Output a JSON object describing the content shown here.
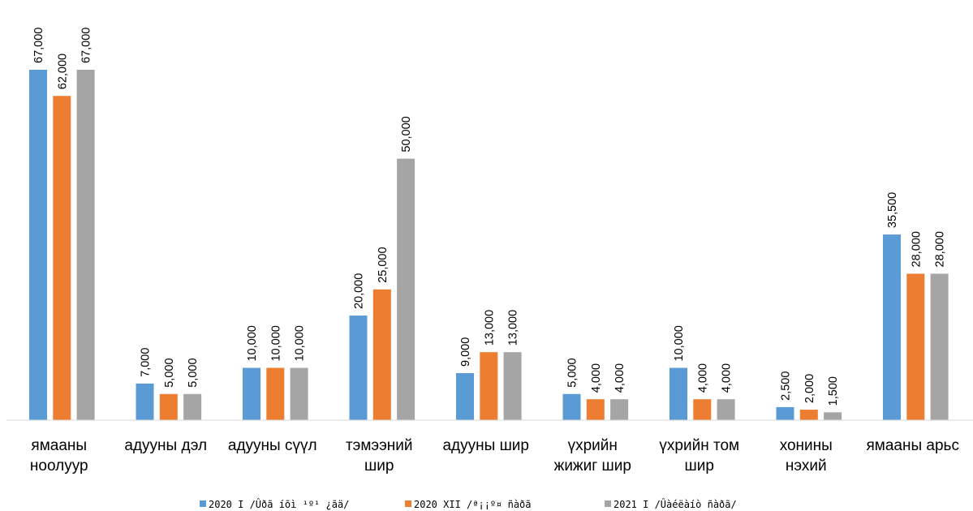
{
  "chart_data": {
    "type": "bar",
    "categories": [
      [
        "ямааны",
        "ноолуур"
      ],
      [
        "адууны дэл"
      ],
      [
        "адууны сүүл"
      ],
      [
        "тэмээний",
        "шир"
      ],
      [
        "адууны шир"
      ],
      [
        "үхрийн",
        "жижиг шир"
      ],
      [
        "үхрийн том",
        "шир"
      ],
      [
        "хонины",
        "нэхий"
      ],
      [
        "ямааны арьс"
      ]
    ],
    "series": [
      {
        "name": "2020 I /Ûðã íõì ¹º¹ ¿ãä/",
        "color": "#5B9BD5",
        "values": [
          67000,
          7000,
          10000,
          20000,
          9000,
          5000,
          10000,
          2500,
          35500
        ],
        "labels": [
          "67,000",
          "7,000",
          "10,000",
          "20,000",
          "9,000",
          "5,000",
          "10,000",
          "2,500",
          "35,500"
        ]
      },
      {
        "name": "2020 XII /ª¡¡º¤ ñàðã",
        "color": "#ED7D31",
        "values": [
          62000,
          5000,
          10000,
          25000,
          13000,
          4000,
          4000,
          2000,
          28000
        ],
        "labels": [
          "62,000",
          "5,000",
          "10,000",
          "25,000",
          "13,000",
          "4,000",
          "4,000",
          "2,000",
          "28,000"
        ]
      },
      {
        "name": "2021 I /Ûàéëàíò ñàðã/",
        "color": "#A5A5A5",
        "values": [
          67000,
          5000,
          10000,
          50000,
          13000,
          4000,
          4000,
          1500,
          28000
        ],
        "labels": [
          "67,000",
          "5,000",
          "10,000",
          "50,000",
          "13,000",
          "4,000",
          "4,000",
          "1,500",
          "28,000"
        ]
      }
    ],
    "ylim": [
      0,
      67000
    ],
    "grid": false,
    "legend_position": "bottom"
  }
}
